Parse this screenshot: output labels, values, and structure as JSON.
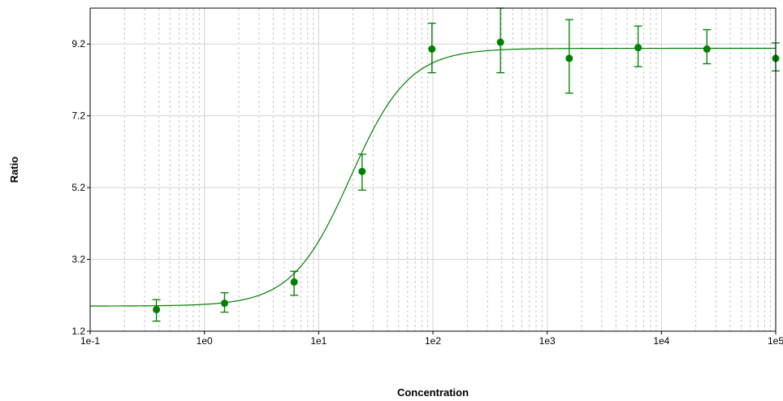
{
  "chart_data": {
    "type": "scatter",
    "xlabel": "Concentration",
    "ylabel": "Ratio",
    "xscale": "log",
    "xlim": [
      0.1,
      100000
    ],
    "ylim": [
      1.2,
      10.2
    ],
    "x_tick_values": [
      0.1,
      1,
      10,
      100,
      1000,
      10000,
      100000
    ],
    "x_tick_labels": [
      "1e-1",
      "1e0",
      "1e1",
      "1e2",
      "1e3",
      "1e4",
      "1e5"
    ],
    "y_tick_values": [
      1.2,
      3.2,
      5.2,
      7.2,
      9.2
    ],
    "y_tick_labels": [
      "1.2",
      "3.2",
      "5.2",
      "7.2",
      "9.2"
    ],
    "grid": true,
    "legend": "none",
    "colors": {
      "series": "#008000",
      "grid_major": "#d3d3d3",
      "grid_minor": "#c8c8c8",
      "axes": "#000000"
    },
    "series": [
      {
        "points": [
          {
            "x": 0.38,
            "y": 1.8,
            "err_low": 1.48,
            "err_high": 2.08
          },
          {
            "x": 1.5,
            "y": 1.98,
            "err_low": 1.73,
            "err_high": 2.27
          },
          {
            "x": 6.1,
            "y": 2.57,
            "err_low": 2.2,
            "err_high": 2.87
          },
          {
            "x": 24,
            "y": 5.65,
            "err_low": 5.13,
            "err_high": 6.13
          },
          {
            "x": 98,
            "y": 9.06,
            "err_low": 8.4,
            "err_high": 9.78
          },
          {
            "x": 390,
            "y": 9.25,
            "err_low": 8.4,
            "err_high": 10.2
          },
          {
            "x": 1560,
            "y": 8.8,
            "err_low": 7.83,
            "err_high": 9.88
          },
          {
            "x": 6250,
            "y": 9.1,
            "err_low": 8.57,
            "err_high": 9.7
          },
          {
            "x": 25000,
            "y": 9.06,
            "err_low": 8.65,
            "err_high": 9.6
          },
          {
            "x": 100000,
            "y": 8.8,
            "err_low": 8.45,
            "err_high": 9.23
          }
        ]
      }
    ],
    "fit_curve": {
      "bottom": 1.9,
      "top": 9.08,
      "ec50": 19,
      "hill": 1.7
    }
  }
}
